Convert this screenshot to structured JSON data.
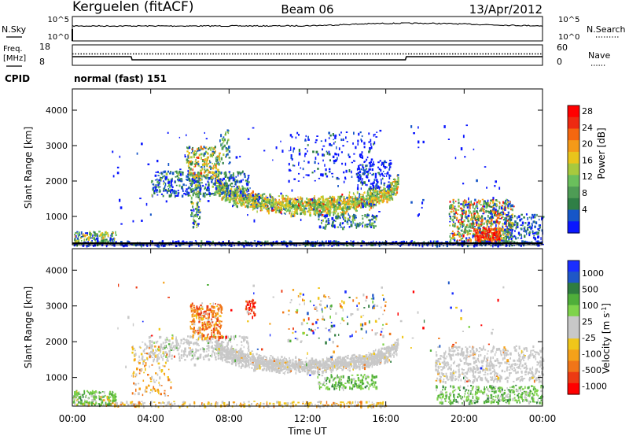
{
  "header": {
    "site": "Kerguelen (fitACF)",
    "beam": "Beam 06",
    "date": "13/Apr/2012"
  },
  "nsky_panel": {
    "left_label": "N.Sky",
    "left_ticks": [
      "10^5",
      "10^0"
    ],
    "right_ticks": [
      "10^5",
      "10^0"
    ],
    "right_label": "N.Search"
  },
  "freq_panel": {
    "left_label_1": "Freq.",
    "left_label_2": "[MHz]",
    "left_ticks": [
      "18",
      "8"
    ],
    "right_ticks": [
      "60",
      "0"
    ],
    "right_label": "Nave",
    "freq_series": {
      "x_hours": [
        0,
        3.0,
        3.05,
        17.0,
        17.05,
        24
      ],
      "y_mhz": [
        12.0,
        12.0,
        10.0,
        10.0,
        12.0,
        12.0
      ]
    },
    "nave_series": {
      "x_hours": [
        0,
        24
      ],
      "y": [
        30,
        30
      ]
    }
  },
  "cpid": {
    "label": "CPID",
    "value": "normal (fast) 151"
  },
  "chart_data": [
    {
      "type": "heatmap",
      "name": "Power",
      "xlabel": "",
      "ylabel": "Slant Range [km]",
      "xlim_hours": [
        0,
        24
      ],
      "ylim_km": [
        200,
        4600
      ],
      "y_ticks": [
        "1000",
        "2000",
        "3000",
        "4000"
      ],
      "colorbar": {
        "label": "Power [dB]",
        "ticks": [
          "4",
          "8",
          "12",
          "16",
          "20",
          "24",
          "28"
        ],
        "colors": [
          "#0a17ff",
          "#1656c8",
          "#2f7f46",
          "#4e9c55",
          "#6abf5c",
          "#a7c93e",
          "#e9c51b",
          "#f59a18",
          "#f5670f",
          "#ee2a11",
          "#ff0000"
        ]
      }
    },
    {
      "type": "heatmap",
      "name": "Velocity",
      "xlabel": "Time UT",
      "ylabel": "Slant Range [km]",
      "xlim_hours": [
        0,
        24
      ],
      "ylim_km": [
        200,
        4600
      ],
      "x_ticks": [
        "00:00",
        "04:00",
        "08:00",
        "12:00",
        "16:00",
        "20:00",
        "00:00"
      ],
      "y_ticks": [
        "1000",
        "2000",
        "3000",
        "4000"
      ],
      "colorbar": {
        "label": "Velocity [m s^-1]",
        "ticks": [
          "1000",
          "500",
          "100",
          "25",
          "-25",
          "-100",
          "-500",
          "-1000"
        ],
        "colors": [
          "#1a2eff",
          "#1f57c7",
          "#2f7d3f",
          "#4fae3a",
          "#7fd34b",
          "#c8c8c8",
          "#c8c8c8",
          "#f0c61a",
          "#f5a119",
          "#f07518",
          "#ec3a13",
          "#ff0000"
        ]
      }
    }
  ]
}
